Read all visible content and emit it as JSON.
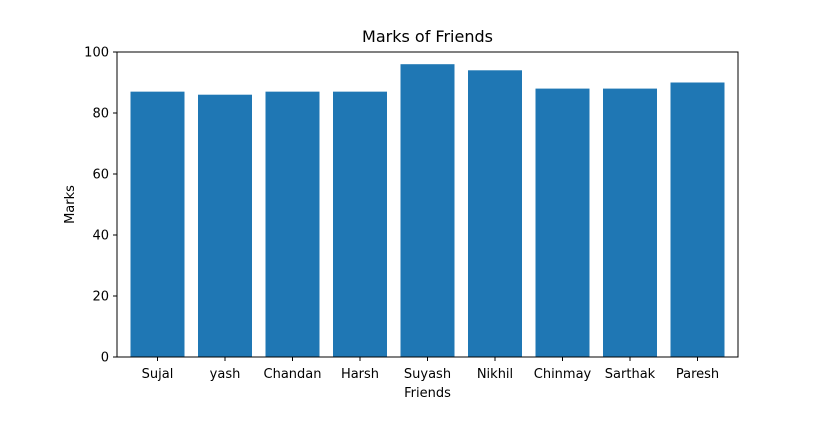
{
  "chart_data": {
    "type": "bar",
    "title": "Marks of Friends",
    "xlabel": "Friends",
    "ylabel": "Marks",
    "categories": [
      "Sujal",
      "yash",
      "Chandan",
      "Harsh",
      "Suyash",
      "Nikhil",
      "Chinmay",
      "Sarthak",
      "Paresh"
    ],
    "values": [
      87,
      86,
      87,
      87,
      96,
      94,
      88,
      88,
      90
    ],
    "ylim": [
      0,
      100
    ],
    "yticks": [
      0,
      20,
      40,
      60,
      80,
      100
    ],
    "grid": false,
    "legend": "none",
    "bar_color": "#1f77b4"
  }
}
